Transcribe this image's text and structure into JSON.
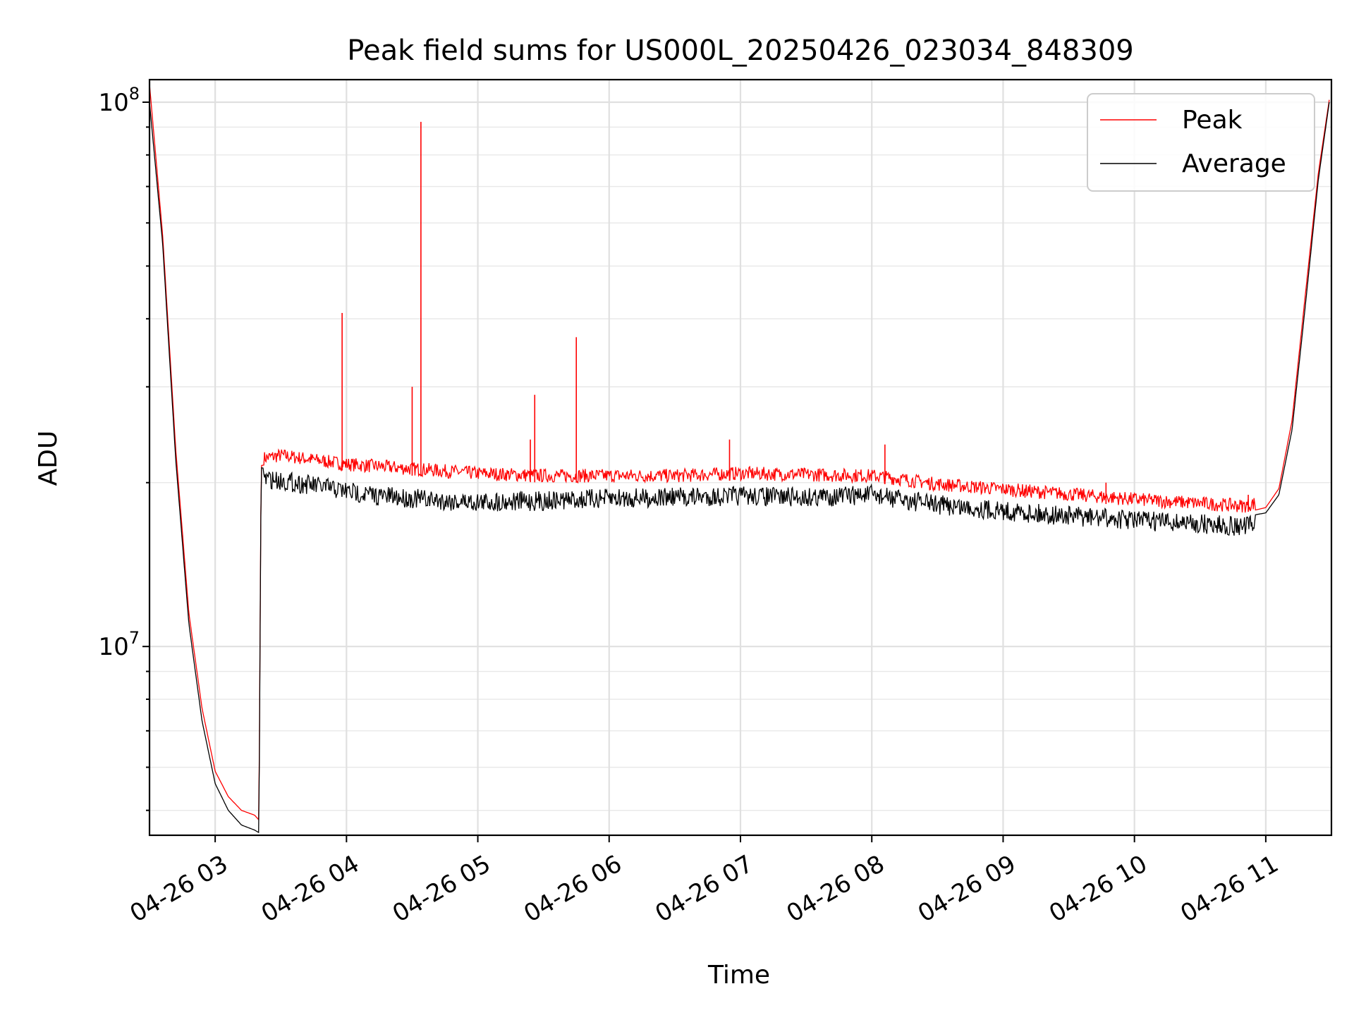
{
  "chart_data": {
    "type": "line",
    "title": "Peak field sums for US000L_20250426_023034_848309",
    "xlabel": "Time",
    "ylabel": "ADU",
    "yscale": "log",
    "ylim": [
      4500000,
      110000000
    ],
    "xlim": [
      "2025-04-26 02:30",
      "2025-04-26 11:30"
    ],
    "grid": true,
    "legend_position": "top-right",
    "x_ticks": [
      {
        "t": "2025-04-26 03:00",
        "label": "04-26 03"
      },
      {
        "t": "2025-04-26 04:00",
        "label": "04-26 04"
      },
      {
        "t": "2025-04-26 05:00",
        "label": "04-26 05"
      },
      {
        "t": "2025-04-26 06:00",
        "label": "04-26 06"
      },
      {
        "t": "2025-04-26 07:00",
        "label": "04-26 07"
      },
      {
        "t": "2025-04-26 08:00",
        "label": "04-26 08"
      },
      {
        "t": "2025-04-26 09:00",
        "label": "04-26 09"
      },
      {
        "t": "2025-04-26 10:00",
        "label": "04-26 10"
      },
      {
        "t": "2025-04-26 11:00",
        "label": "04-26 11"
      }
    ],
    "y_ticks": [
      {
        "value": 10000000,
        "base": "10",
        "exp": "7"
      },
      {
        "value": 100000000,
        "base": "10",
        "exp": "8"
      }
    ],
    "series": [
      {
        "name": "Average",
        "color": "#000000",
        "x": [
          "2025-04-26 02:30",
          "2025-04-26 02:36",
          "2025-04-26 02:42",
          "2025-04-26 02:48",
          "2025-04-26 02:54",
          "2025-04-26 03:00",
          "2025-04-26 03:06",
          "2025-04-26 03:12",
          "2025-04-26 03:18",
          "2025-04-26 03:20",
          "2025-04-26 03:21",
          "2025-04-26 03:30",
          "2025-04-26 03:45",
          "2025-04-26 04:00",
          "2025-04-26 04:15",
          "2025-04-26 04:30",
          "2025-04-26 04:45",
          "2025-04-26 05:00",
          "2025-04-26 05:30",
          "2025-04-26 06:00",
          "2025-04-26 06:30",
          "2025-04-26 07:00",
          "2025-04-26 07:30",
          "2025-04-26 08:00",
          "2025-04-26 08:10",
          "2025-04-26 08:30",
          "2025-04-26 09:00",
          "2025-04-26 09:30",
          "2025-04-26 10:00",
          "2025-04-26 10:30",
          "2025-04-26 10:50",
          "2025-04-26 11:00",
          "2025-04-26 11:06",
          "2025-04-26 11:12",
          "2025-04-26 11:18",
          "2025-04-26 11:24",
          "2025-04-26 11:29"
        ],
        "y": [
          100000000,
          55000000,
          22000000,
          11000000,
          7300000,
          5600000,
          5000000,
          4700000,
          4600000,
          4550000,
          21300000,
          21000000,
          20600000,
          20100000,
          19700000,
          19500000,
          19300000,
          19200000,
          19300000,
          19500000,
          19600000,
          19700000,
          19600000,
          19800000,
          19500000,
          19000000,
          18500000,
          18100000,
          17800000,
          17500000,
          17300000,
          17600000,
          19000000,
          25000000,
          42000000,
          72000000,
          100000000
        ]
      },
      {
        "name": "Peak",
        "color": "#ff0000",
        "x": [
          "2025-04-26 02:30",
          "2025-04-26 02:36",
          "2025-04-26 02:42",
          "2025-04-26 02:48",
          "2025-04-26 02:54",
          "2025-04-26 03:00",
          "2025-04-26 03:06",
          "2025-04-26 03:12",
          "2025-04-26 03:18",
          "2025-04-26 03:20",
          "2025-04-26 03:21",
          "2025-04-26 03:30",
          "2025-04-26 03:45",
          "2025-04-26 04:00",
          "2025-04-26 04:15",
          "2025-04-26 04:30",
          "2025-04-26 04:45",
          "2025-04-26 05:00",
          "2025-04-26 05:30",
          "2025-04-26 06:00",
          "2025-04-26 06:30",
          "2025-04-26 07:00",
          "2025-04-26 07:30",
          "2025-04-26 08:00",
          "2025-04-26 08:10",
          "2025-04-26 08:30",
          "2025-04-26 09:00",
          "2025-04-26 09:30",
          "2025-04-26 10:00",
          "2025-04-26 10:30",
          "2025-04-26 10:50",
          "2025-04-26 11:00",
          "2025-04-26 11:06",
          "2025-04-26 11:12",
          "2025-04-26 11:18",
          "2025-04-26 11:24",
          "2025-04-26 11:29"
        ],
        "y": [
          108000000,
          57000000,
          23000000,
          11500000,
          7700000,
          5900000,
          5300000,
          5000000,
          4900000,
          4800000,
          21500000,
          21800000,
          21400000,
          21000000,
          20800000,
          20600000,
          20400000,
          20200000,
          20000000,
          20000000,
          20000000,
          20200000,
          20100000,
          20000000,
          19800000,
          19300000,
          18900000,
          18500000,
          18100000,
          17800000,
          17600000,
          18000000,
          19500000,
          26000000,
          44000000,
          74000000,
          101000000
        ],
        "spikes": [
          {
            "x": "2025-04-26 03:58",
            "y": 41000000
          },
          {
            "x": "2025-04-26 04:30",
            "y": 30000000
          },
          {
            "x": "2025-04-26 04:34",
            "y": 92000000
          },
          {
            "x": "2025-04-26 05:24",
            "y": 24000000
          },
          {
            "x": "2025-04-26 05:26",
            "y": 29000000
          },
          {
            "x": "2025-04-26 05:45",
            "y": 37000000
          },
          {
            "x": "2025-04-26 06:55",
            "y": 24000000
          },
          {
            "x": "2025-04-26 08:06",
            "y": 23500000
          },
          {
            "x": "2025-04-26 09:10",
            "y": 19500000
          },
          {
            "x": "2025-04-26 09:47",
            "y": 20000000
          },
          {
            "x": "2025-04-26 10:52",
            "y": 19000000
          }
        ]
      }
    ]
  }
}
